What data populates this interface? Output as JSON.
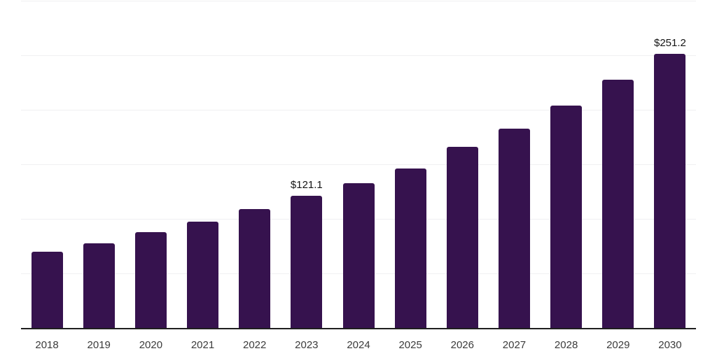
{
  "chart_data": {
    "type": "bar",
    "title": "",
    "xlabel": "",
    "ylabel": "",
    "categories": [
      "2018",
      "2019",
      "2020",
      "2021",
      "2022",
      "2023",
      "2024",
      "2025",
      "2026",
      "2027",
      "2028",
      "2029",
      "2030"
    ],
    "values": [
      69.6,
      77.4,
      87.7,
      97.5,
      108.8,
      121.1,
      132.6,
      146.2,
      166.3,
      182.6,
      204.0,
      227.5,
      251.2
    ],
    "labeled_points": [
      {
        "category": "2023",
        "label": "$121.1"
      },
      {
        "category": "2030",
        "label": "$251.2"
      }
    ],
    "ylim": [
      0,
      300
    ],
    "gridline_step": 50,
    "grid": "horizontal",
    "legend": "none",
    "colors": {
      "bar": "#36124E",
      "gridline": "#F0F0F2",
      "axis_line": "#1F1F1F",
      "tick_label": "#3B3B3B",
      "data_label": "#141414",
      "background": "#FFFFFF"
    }
  }
}
